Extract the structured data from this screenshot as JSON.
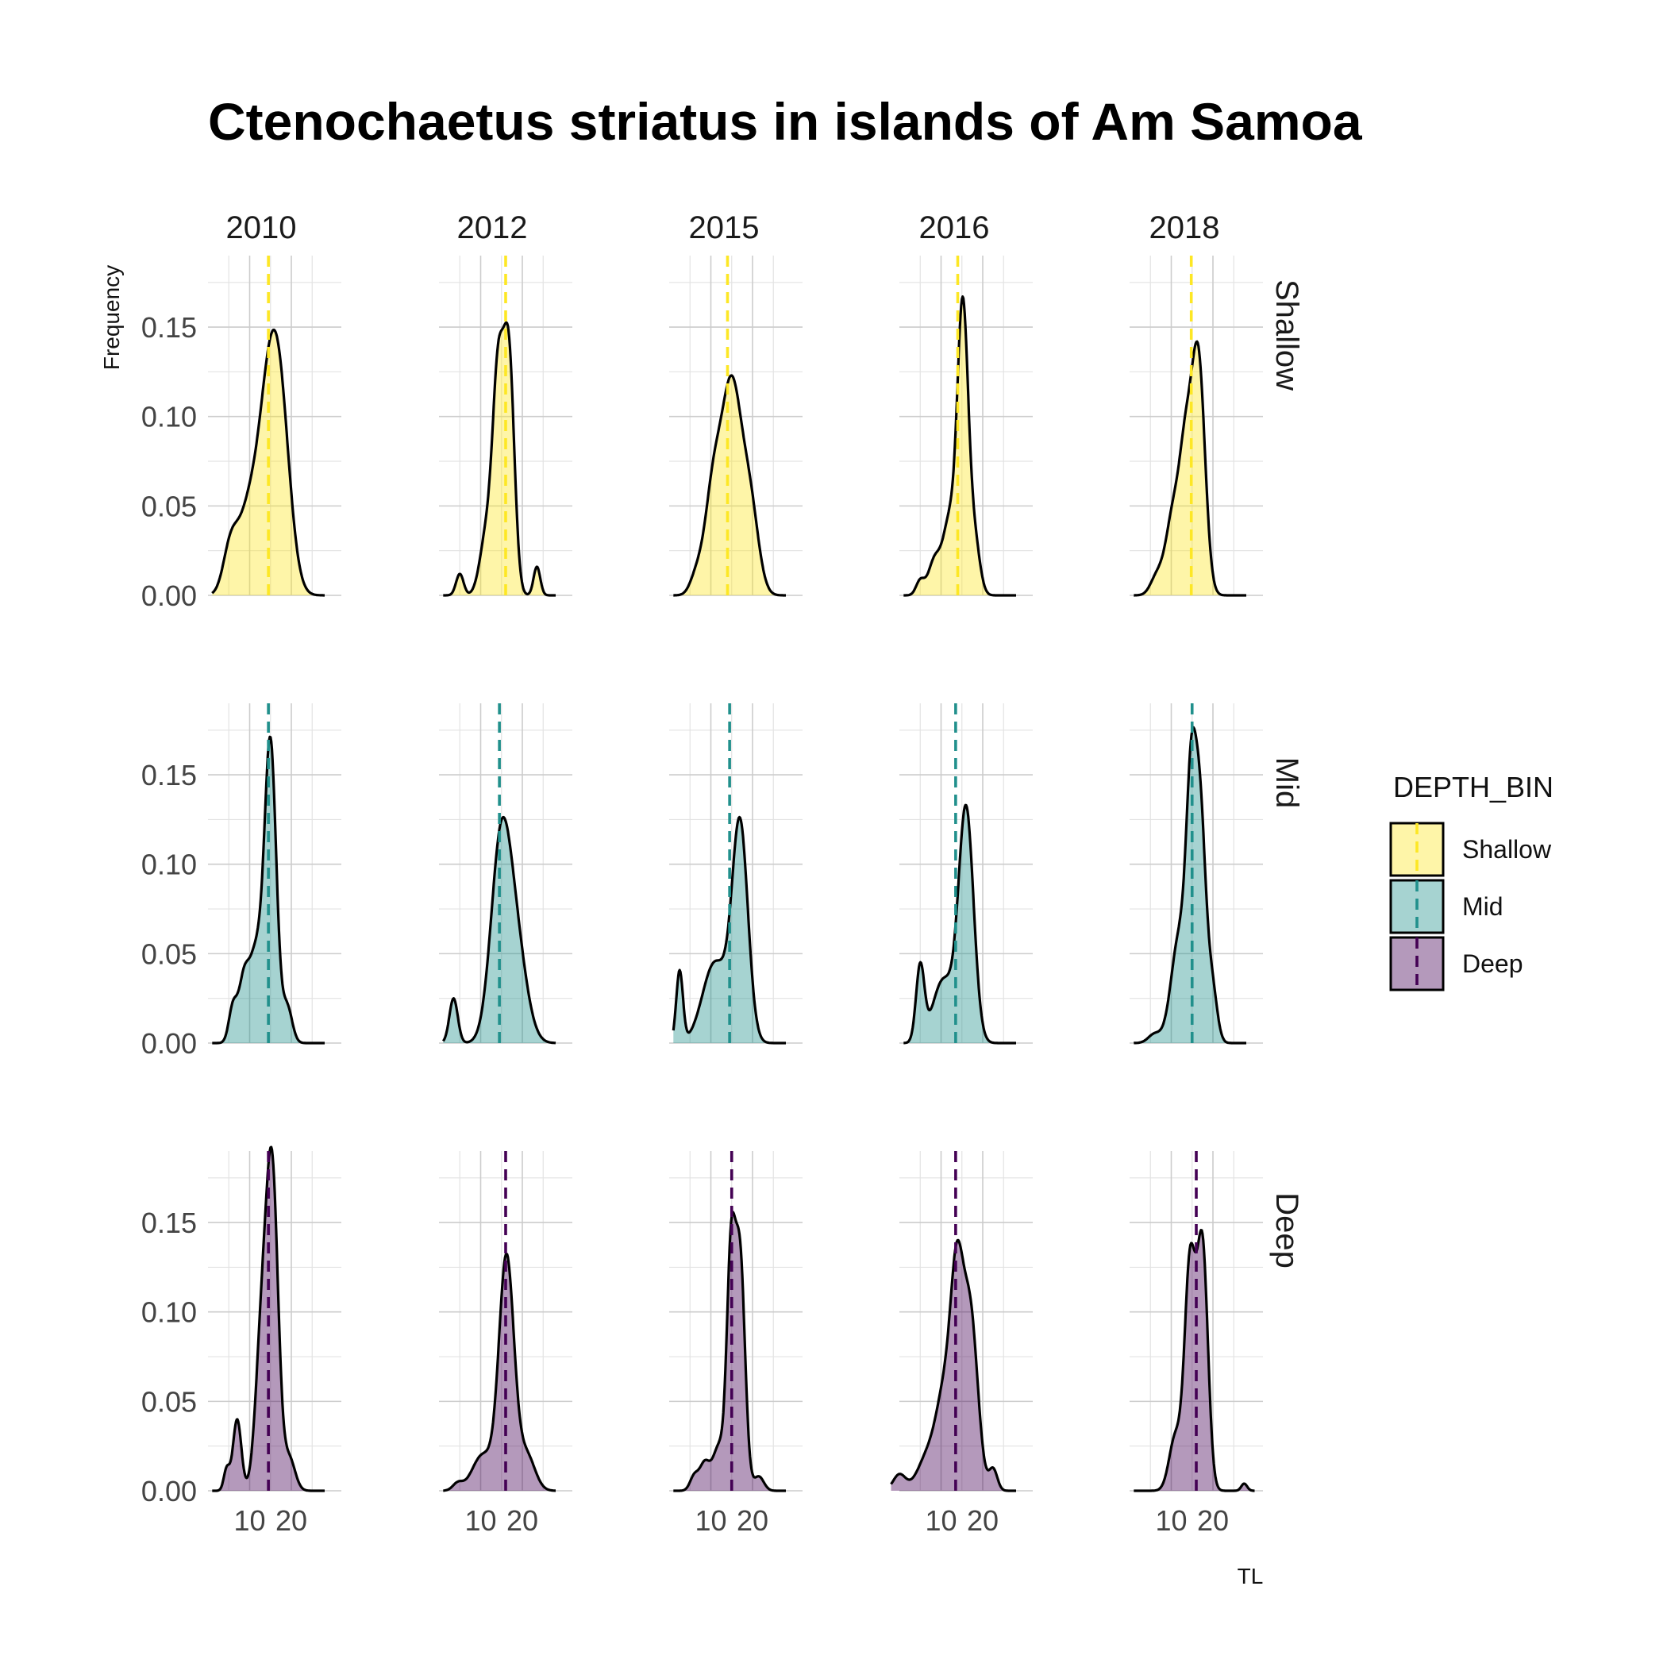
{
  "chart_data": {
    "type": "area",
    "title": "Ctenochaetus striatus in islands of Am Samoa",
    "xlabel": "TL",
    "ylabel": "Frequency",
    "columns": [
      "2010",
      "2012",
      "2015",
      "2016",
      "2018"
    ],
    "rows": [
      "Shallow",
      "Mid",
      "Deep"
    ],
    "xlim": [
      0,
      32
    ],
    "ylim": [
      0,
      0.19
    ],
    "x_ticks": [
      10,
      20
    ],
    "y_ticks": [
      0.0,
      0.05,
      0.1,
      0.15
    ],
    "y_tick_labels": [
      "0.00",
      "0.05",
      "0.10",
      "0.15"
    ],
    "grid": true,
    "legend": {
      "title": "DEPTH_BIN",
      "position": "right",
      "entries": [
        "Shallow",
        "Mid",
        "Deep"
      ]
    },
    "colors": {
      "Shallow": "#fde725",
      "Mid": "#21908c",
      "Deep": "#440154"
    },
    "panels": [
      {
        "row": "Shallow",
        "col": "2010",
        "range": [
          1,
          28
        ],
        "mean": 14.5,
        "peaks": [
          [
            5.5,
            0.028,
            1.8
          ],
          [
            9.5,
            0.04,
            2.2
          ],
          [
            13.5,
            0.06,
            2.3
          ],
          [
            16.8,
            0.12,
            2.6
          ]
        ]
      },
      {
        "row": "Shallow",
        "col": "2012",
        "range": [
          1,
          28
        ],
        "mean": 16.0,
        "peaks": [
          [
            5.0,
            0.012,
            0.9
          ],
          [
            11.5,
            0.035,
            1.6
          ],
          [
            14.2,
            0.115,
            1.3
          ],
          [
            16.8,
            0.13,
            1.3
          ],
          [
            23.5,
            0.016,
            0.8
          ]
        ]
      },
      {
        "row": "Shallow",
        "col": "2015",
        "range": [
          1,
          28
        ],
        "mean": 14.0,
        "peaks": [
          [
            6.5,
            0.01,
            1.5
          ],
          [
            10.5,
            0.055,
            2.0
          ],
          [
            15.0,
            0.115,
            2.4
          ],
          [
            19.5,
            0.045,
            2.0
          ]
        ]
      },
      {
        "row": "Shallow",
        "col": "2016",
        "range": [
          1,
          28
        ],
        "mean": 14.0,
        "peaks": [
          [
            5.0,
            0.008,
            1.0
          ],
          [
            8.5,
            0.02,
            1.5
          ],
          [
            12.0,
            0.04,
            1.5
          ],
          [
            15.2,
            0.16,
            1.3
          ],
          [
            18.0,
            0.03,
            1.3
          ]
        ]
      },
      {
        "row": "Shallow",
        "col": "2018",
        "range": [
          1,
          28
        ],
        "mean": 14.8,
        "peaks": [
          [
            6.5,
            0.01,
            1.5
          ],
          [
            10.5,
            0.045,
            1.8
          ],
          [
            13.5,
            0.07,
            1.5
          ],
          [
            16.5,
            0.13,
            1.6
          ]
        ]
      },
      {
        "row": "Mid",
        "col": "2010",
        "range": [
          1,
          28
        ],
        "mean": 14.5,
        "peaks": [
          [
            6.0,
            0.02,
            1.0
          ],
          [
            8.5,
            0.03,
            1.2
          ],
          [
            11.5,
            0.05,
            1.7
          ],
          [
            15.0,
            0.165,
            1.4
          ],
          [
            19.0,
            0.02,
            1.2
          ]
        ]
      },
      {
        "row": "Mid",
        "col": "2012",
        "range": [
          1,
          28
        ],
        "mean": 14.5,
        "peaks": [
          [
            3.5,
            0.025,
            1.0
          ],
          [
            14.8,
            0.105,
            2.4
          ],
          [
            18.5,
            0.05,
            2.6
          ]
        ]
      },
      {
        "row": "Mid",
        "col": "2015",
        "range": [
          1,
          28
        ],
        "mean": 14.5,
        "peaks": [
          [
            2.5,
            0.04,
            0.8
          ],
          [
            11.0,
            0.045,
            3.0
          ],
          [
            17.0,
            0.12,
            1.9
          ]
        ]
      },
      {
        "row": "Mid",
        "col": "2016",
        "range": [
          1,
          28
        ],
        "mean": 13.5,
        "peaks": [
          [
            5.0,
            0.042,
            1.0
          ],
          [
            10.5,
            0.035,
            2.5
          ],
          [
            16.0,
            0.13,
            1.8
          ]
        ]
      },
      {
        "row": "Mid",
        "col": "2018",
        "range": [
          1,
          28
        ],
        "mean": 15.0,
        "peaks": [
          [
            6.0,
            0.005,
            1.5
          ],
          [
            12.0,
            0.06,
            2.0
          ],
          [
            14.8,
            0.12,
            1.2
          ],
          [
            17.0,
            0.12,
            1.3
          ],
          [
            19.8,
            0.03,
            1.2
          ]
        ]
      },
      {
        "row": "Deep",
        "col": "2010",
        "range": [
          1,
          28
        ],
        "mean": 14.5,
        "peaks": [
          [
            4.5,
            0.012,
            0.7
          ],
          [
            7.0,
            0.04,
            1.0
          ],
          [
            13.0,
            0.09,
            1.5
          ],
          [
            15.5,
            0.165,
            1.4
          ],
          [
            19.5,
            0.018,
            1.4
          ]
        ]
      },
      {
        "row": "Deep",
        "col": "2012",
        "range": [
          1,
          28
        ],
        "mean": 16.0,
        "peaks": [
          [
            4.5,
            0.004,
            1.2
          ],
          [
            10.5,
            0.02,
            2.5
          ],
          [
            16.2,
            0.13,
            1.8
          ],
          [
            21.0,
            0.02,
            2.0
          ]
        ]
      },
      {
        "row": "Deep",
        "col": "2015",
        "range": [
          1,
          28
        ],
        "mean": 15.0,
        "peaks": [
          [
            6.0,
            0.008,
            1.0
          ],
          [
            8.5,
            0.015,
            1.2
          ],
          [
            12.0,
            0.025,
            1.5
          ],
          [
            14.8,
            0.12,
            1.0
          ],
          [
            17.0,
            0.13,
            1.2
          ],
          [
            21.5,
            0.008,
            1.2
          ]
        ]
      },
      {
        "row": "Deep",
        "col": "2016",
        "range": [
          -2,
          28
        ],
        "mean": 13.5,
        "peaks": [
          [
            0.0,
            0.009,
            1.5
          ],
          [
            7.0,
            0.02,
            2.5
          ],
          [
            11.0,
            0.05,
            2.0
          ],
          [
            13.8,
            0.1,
            1.5
          ],
          [
            17.0,
            0.098,
            1.8
          ],
          [
            22.5,
            0.012,
            1.0
          ]
        ]
      },
      {
        "row": "Deep",
        "col": "2018",
        "range": [
          1,
          30
        ],
        "mean": 16.0,
        "peaks": [
          [
            11.0,
            0.03,
            1.5
          ],
          [
            14.5,
            0.125,
            1.3
          ],
          [
            17.5,
            0.135,
            1.3
          ],
          [
            27.5,
            0.004,
            0.7
          ]
        ]
      }
    ]
  }
}
